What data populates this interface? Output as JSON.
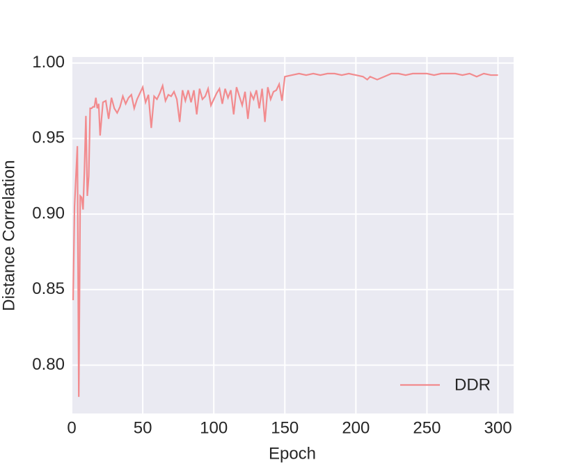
{
  "chart_data": {
    "type": "line",
    "x_label": "Epoch",
    "y_label": "Distance Correlation",
    "xlim": [
      0,
      311
    ],
    "ylim": [
      0.768,
      1.004
    ],
    "xticks": [
      0,
      50,
      100,
      150,
      200,
      250,
      300
    ],
    "yticks": [
      {
        "value": 0.8,
        "label": "0.80"
      },
      {
        "value": 0.85,
        "label": "0.85"
      },
      {
        "value": 0.9,
        "label": "0.90"
      },
      {
        "value": 0.95,
        "label": "0.95"
      },
      {
        "value": 1.0,
        "label": "1.00"
      }
    ],
    "grid": true,
    "legend_position": "lower-right",
    "series": [
      {
        "name": "DDR",
        "color": "#f28b8e",
        "x": [
          1,
          2,
          3,
          4,
          5,
          6,
          7,
          8,
          9,
          10,
          11,
          12,
          13,
          14,
          15,
          16,
          17,
          18,
          19,
          20,
          22,
          24,
          26,
          28,
          30,
          32,
          34,
          36,
          38,
          40,
          42,
          44,
          46,
          48,
          50,
          52,
          54,
          56,
          58,
          60,
          62,
          64,
          66,
          68,
          70,
          72,
          74,
          76,
          78,
          80,
          82,
          84,
          86,
          88,
          90,
          92,
          94,
          96,
          98,
          100,
          102,
          104,
          106,
          108,
          110,
          112,
          114,
          116,
          118,
          120,
          122,
          124,
          126,
          128,
          130,
          132,
          134,
          136,
          138,
          140,
          142,
          144,
          146,
          148,
          150,
          155,
          160,
          165,
          170,
          175,
          180,
          185,
          190,
          195,
          200,
          205,
          208,
          210,
          215,
          220,
          225,
          230,
          235,
          240,
          245,
          250,
          255,
          260,
          265,
          270,
          275,
          280,
          285,
          290,
          295,
          300
        ],
        "values": [
          0.843,
          0.905,
          0.925,
          0.945,
          0.779,
          0.912,
          0.911,
          0.903,
          0.93,
          0.965,
          0.912,
          0.925,
          0.97,
          0.97,
          0.971,
          0.971,
          0.977,
          0.97,
          0.973,
          0.952,
          0.974,
          0.975,
          0.963,
          0.977,
          0.97,
          0.967,
          0.971,
          0.978,
          0.973,
          0.977,
          0.979,
          0.97,
          0.976,
          0.98,
          0.984,
          0.974,
          0.979,
          0.957,
          0.978,
          0.976,
          0.98,
          0.985,
          0.975,
          0.979,
          0.978,
          0.981,
          0.976,
          0.961,
          0.982,
          0.975,
          0.982,
          0.974,
          0.982,
          0.966,
          0.983,
          0.976,
          0.978,
          0.983,
          0.972,
          0.976,
          0.98,
          0.983,
          0.973,
          0.983,
          0.977,
          0.982,
          0.966,
          0.984,
          0.978,
          0.972,
          0.981,
          0.963,
          0.98,
          0.976,
          0.982,
          0.97,
          0.983,
          0.961,
          0.984,
          0.976,
          0.981,
          0.982,
          0.986,
          0.975,
          0.991,
          0.992,
          0.993,
          0.992,
          0.993,
          0.992,
          0.993,
          0.993,
          0.992,
          0.993,
          0.992,
          0.991,
          0.989,
          0.991,
          0.989,
          0.991,
          0.993,
          0.993,
          0.992,
          0.993,
          0.993,
          0.993,
          0.992,
          0.993,
          0.993,
          0.993,
          0.992,
          0.993,
          0.991,
          0.993,
          0.992,
          0.992
        ]
      }
    ]
  }
}
